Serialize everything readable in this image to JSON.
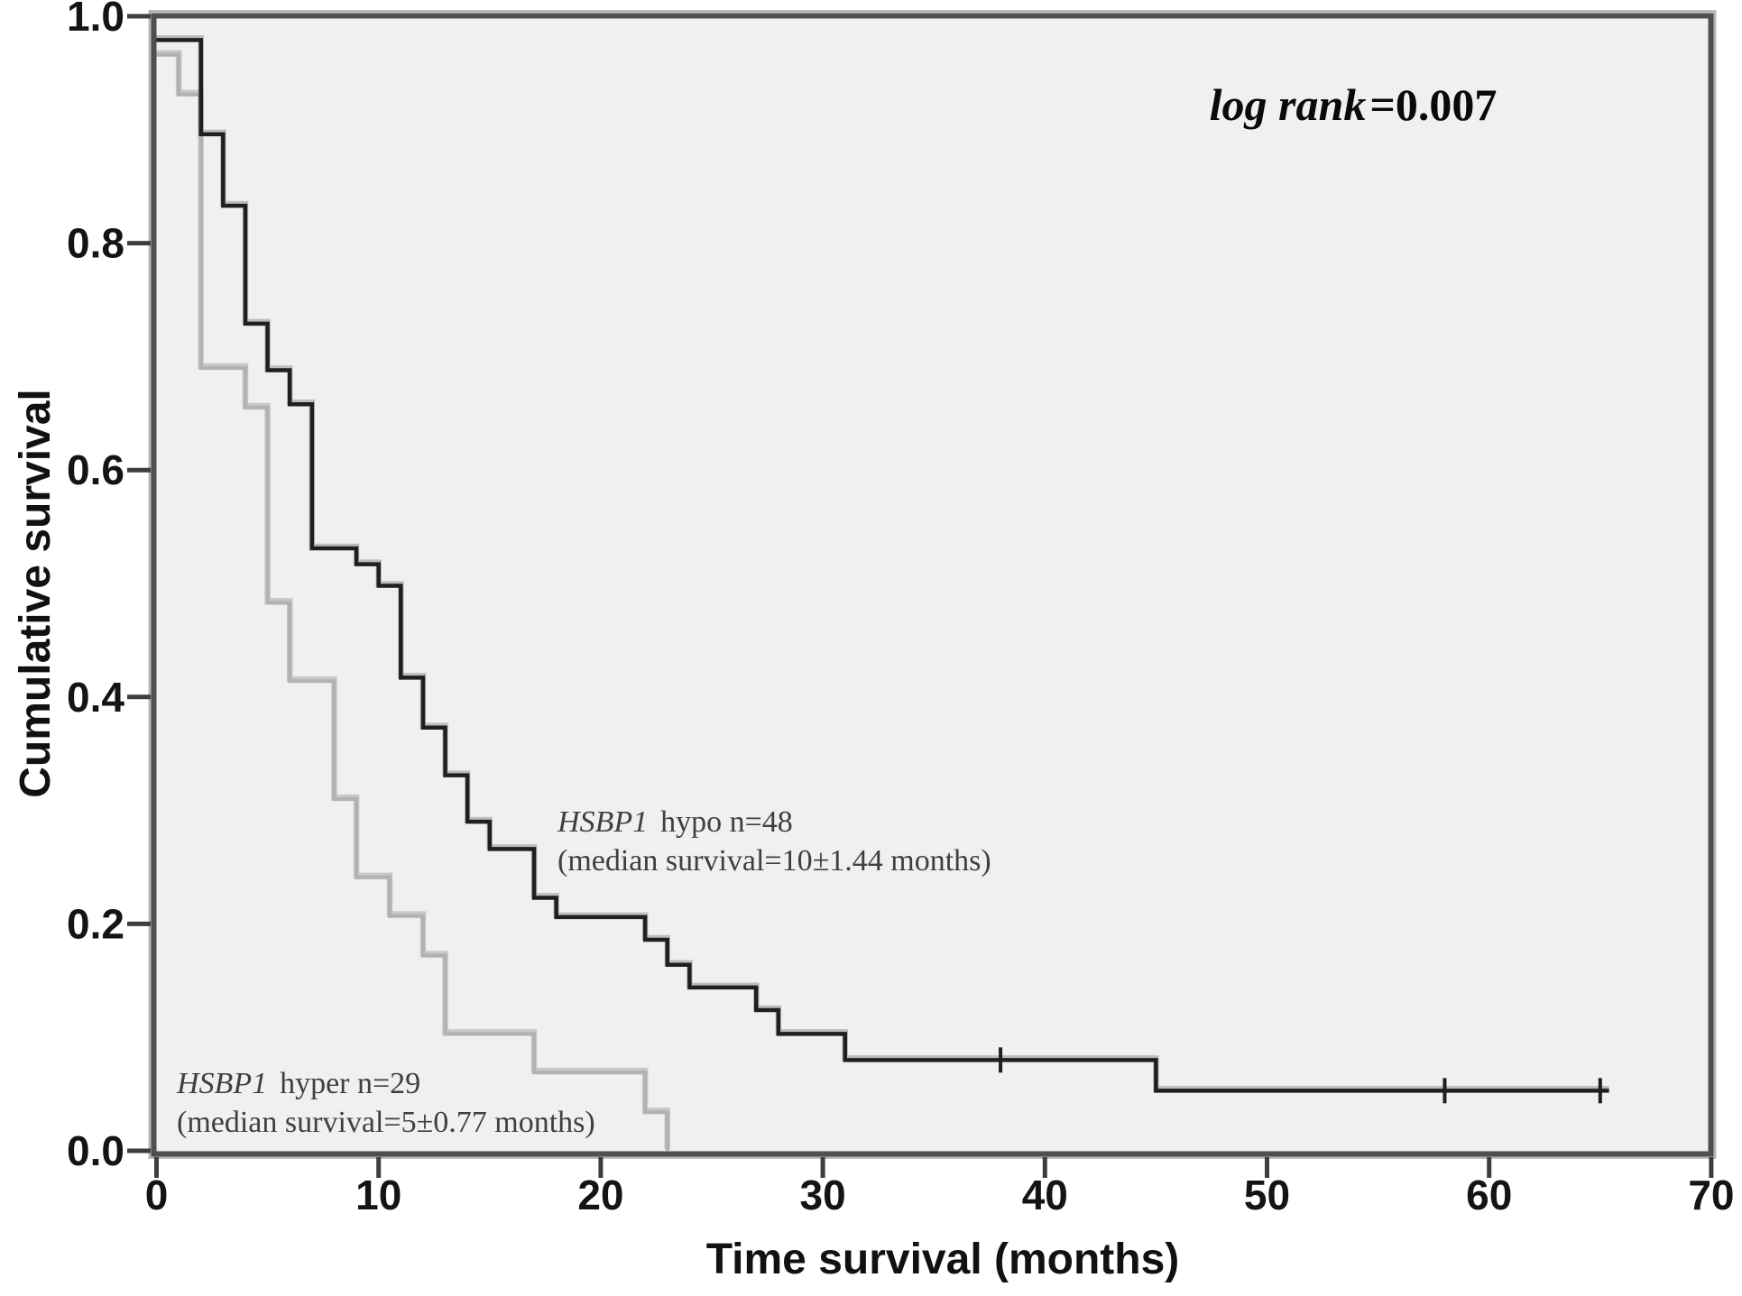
{
  "figure": {
    "bg_color": "#ffffff",
    "plot_bg_color": "#f0f0ef",
    "frame_color": "#4f4f4f",
    "bevel_color": "#b8b8b8",
    "tick_color": "#3d3d3d",
    "annotation": {
      "italic": "log rank",
      "rest": "=0.007"
    }
  },
  "chart_data": {
    "type": "line",
    "subtype": "kaplan_meier_step",
    "title": "",
    "xlabel": "Time survival (months)",
    "ylabel": "Cumulative survival",
    "xlim": [
      0,
      70
    ],
    "ylim": [
      0.0,
      1.0
    ],
    "x_ticks": [
      0,
      10,
      20,
      30,
      40,
      50,
      60,
      70
    ],
    "y_ticks": [
      0.0,
      0.2,
      0.4,
      0.6,
      0.8,
      1.0
    ],
    "grid": false,
    "legend_position": "none",
    "annotation": "log rank=0.007",
    "series": [
      {
        "name": "HSBP1 hypo",
        "n": 48,
        "color": "#1f1f1f",
        "halo_color": "#7d7d7d",
        "stroke_width": 4.5,
        "label": {
          "gene": "HSBP1",
          "rest": "hypo n=48",
          "line2": "(median survival=10±1.44 months)"
        },
        "start_survival": 0.979,
        "steps": [
          [
            2,
            0.896
          ],
          [
            3,
            0.833
          ],
          [
            4,
            0.729
          ],
          [
            5,
            0.688
          ],
          [
            6,
            0.658
          ],
          [
            7,
            0.531
          ],
          [
            9,
            0.517
          ],
          [
            10,
            0.498
          ],
          [
            11,
            0.417
          ],
          [
            12,
            0.373
          ],
          [
            13,
            0.331
          ],
          [
            14,
            0.29
          ],
          [
            15,
            0.266
          ],
          [
            17,
            0.223
          ],
          [
            18,
            0.206
          ],
          [
            22,
            0.186
          ],
          [
            23,
            0.164
          ],
          [
            24,
            0.144
          ],
          [
            27,
            0.124
          ],
          [
            28,
            0.103
          ],
          [
            31,
            0.08
          ],
          [
            45,
            0.053
          ]
        ],
        "end_time": 65.4,
        "censor_marks": [
          [
            38,
            0.08
          ],
          [
            58,
            0.053
          ],
          [
            65,
            0.053
          ]
        ]
      },
      {
        "name": "HSBP1 hyper",
        "n": 29,
        "color": "#b2b2b2",
        "halo_color": "#969696",
        "stroke_width": 4.2,
        "label": {
          "gene": "HSBP1",
          "rest": "hyper n=29",
          "line2": "(median survival=5±0.77 months)"
        },
        "start_survival": 0.966,
        "steps": [
          [
            1,
            0.931
          ],
          [
            2,
            0.69
          ],
          [
            4,
            0.655
          ],
          [
            5,
            0.483
          ],
          [
            6,
            0.414
          ],
          [
            8,
            0.31
          ],
          [
            9,
            0.241
          ],
          [
            10.5,
            0.207
          ],
          [
            12,
            0.172
          ],
          [
            13,
            0.103
          ],
          [
            17,
            0.069
          ],
          [
            22,
            0.034
          ],
          [
            23,
            0.0
          ]
        ],
        "end_time": 23,
        "censor_marks": []
      }
    ]
  }
}
